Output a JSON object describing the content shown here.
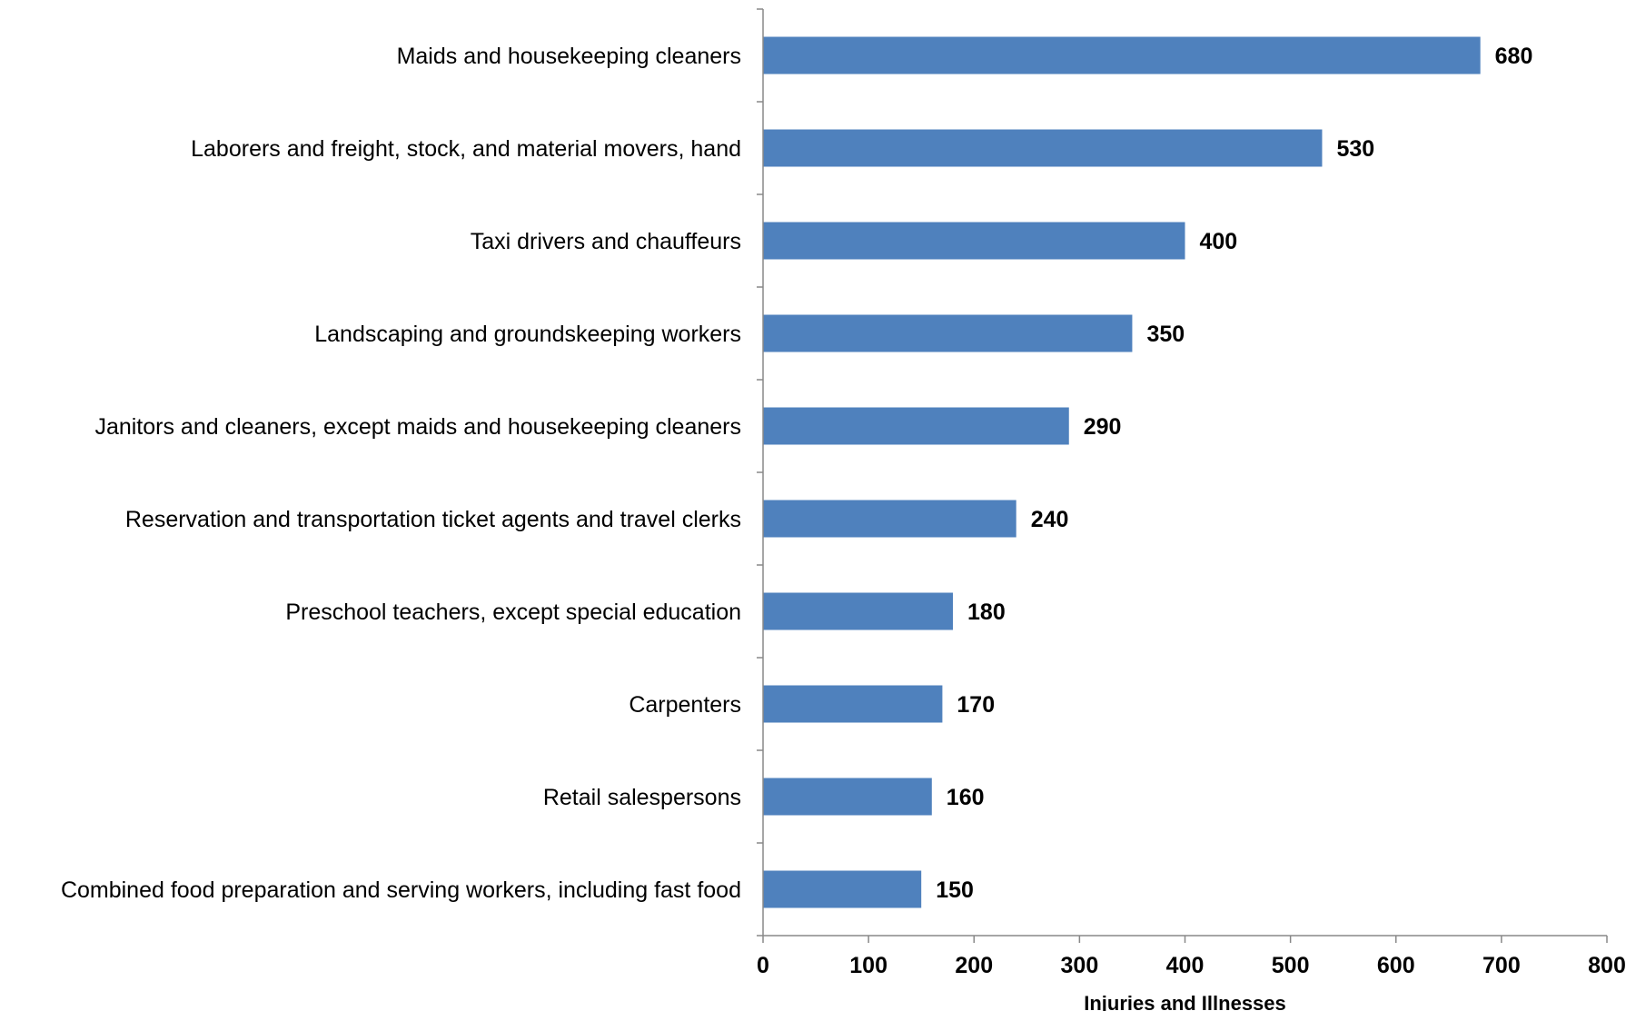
{
  "chart_data": {
    "type": "bar",
    "orientation": "horizontal",
    "categories": [
      "Maids and housekeeping cleaners",
      "Laborers and freight, stock, and material movers, hand",
      "Taxi drivers and chauffeurs",
      "Landscaping and groundskeeping workers",
      "Janitors and cleaners, except maids and housekeeping cleaners",
      "Reservation and transportation ticket agents and travel clerks",
      "Preschool teachers, except special education",
      "Carpenters",
      "Retail salespersons",
      "Combined food preparation and serving workers, including fast food"
    ],
    "values": [
      680,
      530,
      400,
      350,
      290,
      240,
      180,
      170,
      160,
      150
    ],
    "data_labels": [
      "680",
      "530",
      "400",
      "350",
      "290",
      "240",
      "180",
      "170",
      "160",
      "150"
    ],
    "xlabel": "Injuries and Illnesses",
    "ylabel": "",
    "title": "",
    "xlim": [
      0,
      800
    ],
    "xticks": [
      0,
      100,
      200,
      300,
      400,
      500,
      600,
      700,
      800
    ],
    "xtick_labels": [
      "0",
      "100",
      "200",
      "300",
      "400",
      "500",
      "600",
      "700",
      "800"
    ],
    "grid": false,
    "legend": "none",
    "bar_color": "#4f81bd"
  }
}
